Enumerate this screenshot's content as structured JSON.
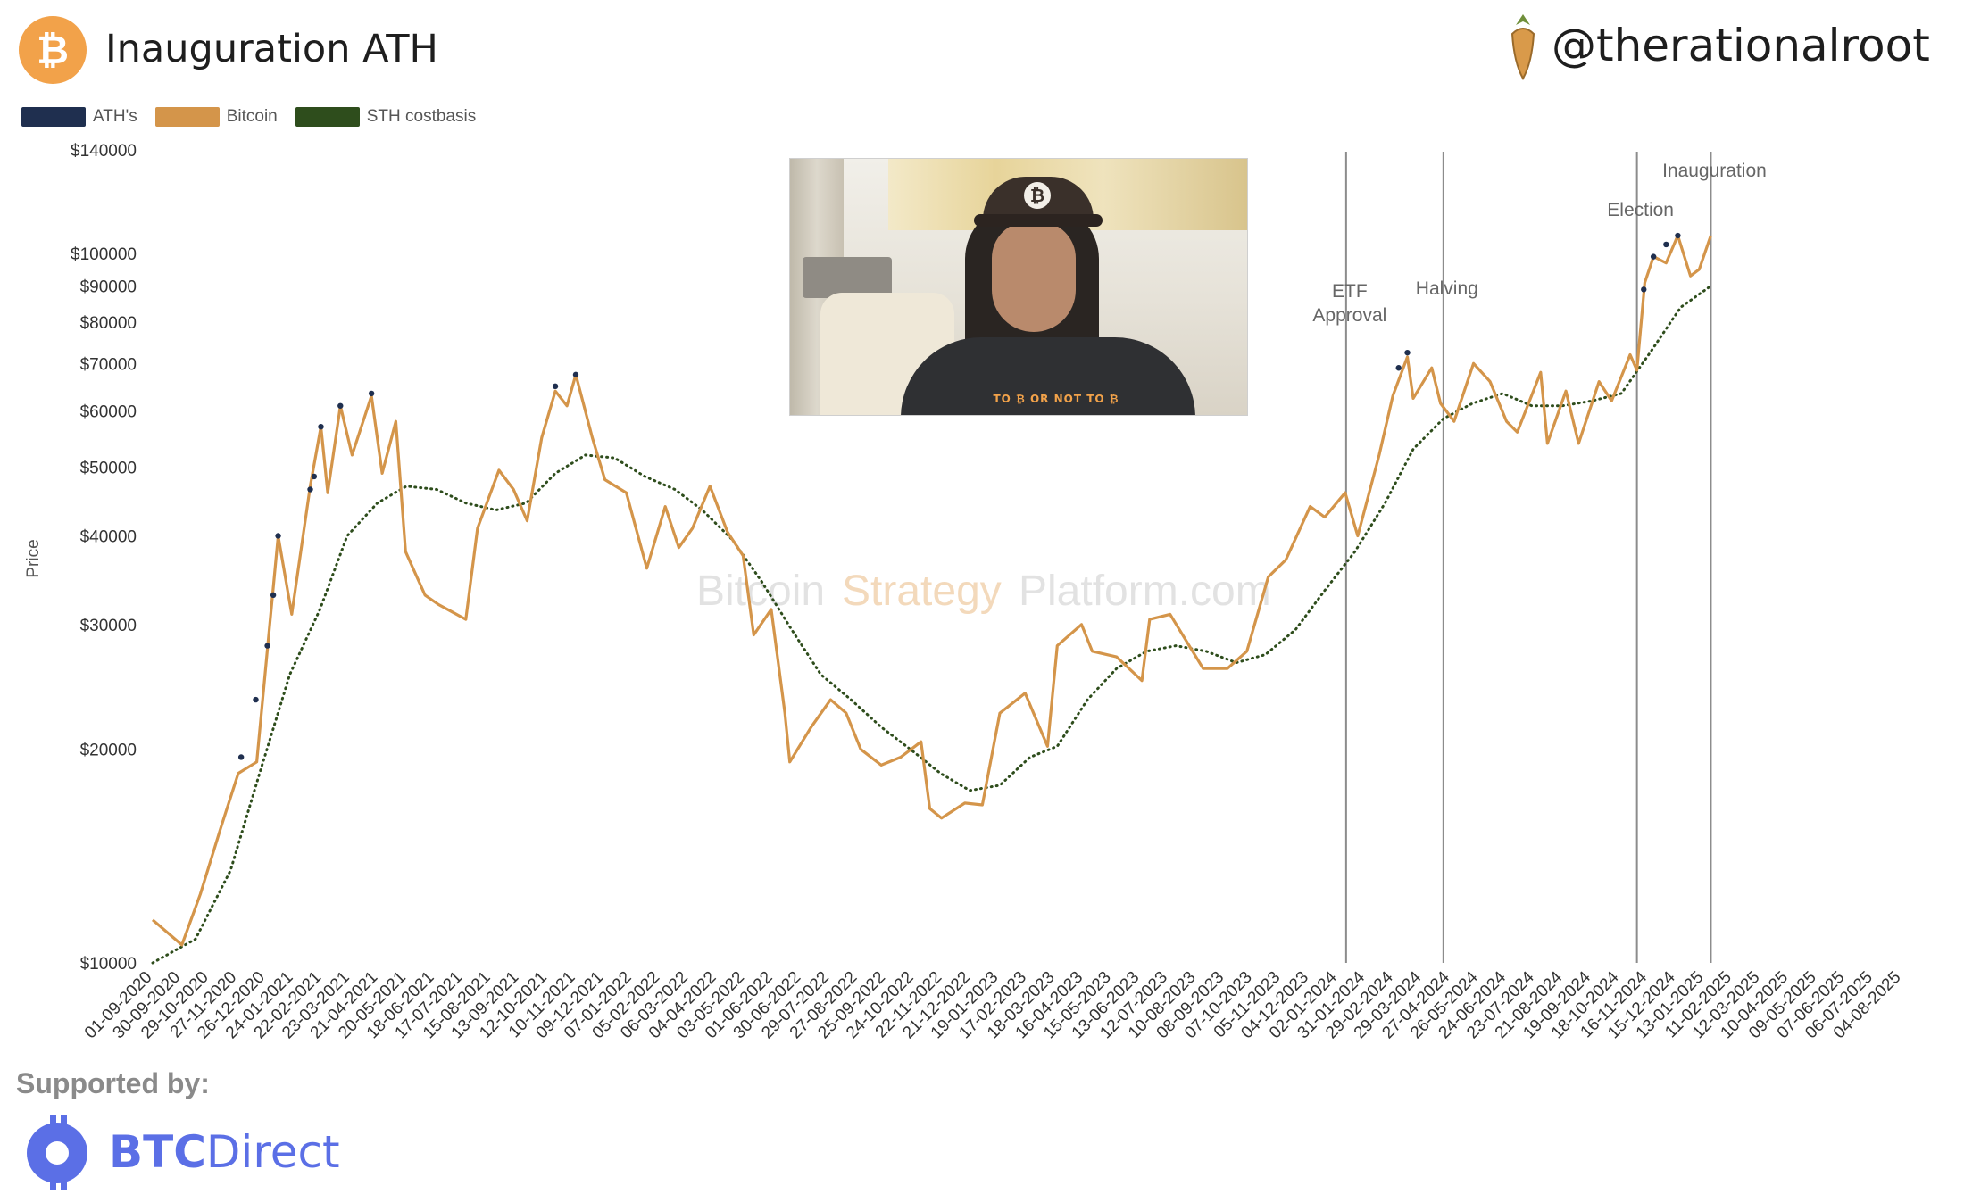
{
  "header": {
    "title": "Inauguration ATH",
    "handle": "@therationalroot"
  },
  "legend": {
    "items": [
      {
        "label": "ATH's",
        "color": "#1f2f4f"
      },
      {
        "label": "Bitcoin",
        "color": "#d4954a"
      },
      {
        "label": "STH costbasis",
        "color": "#2e4d1c"
      }
    ]
  },
  "watermark": {
    "part1": "Bitcoin",
    "part2": "Strategy",
    "part3": "Platform.com"
  },
  "footer": {
    "supported_label": "Supported by:",
    "brand_bold": "BTC",
    "brand_light": "Direct"
  },
  "colors": {
    "bitcoin": "#d4954a",
    "ath": "#1f2f4f",
    "sth": "#2e4d1c",
    "vline": "#8c8c8c",
    "btc_icon": "#f2a24a",
    "brand": "#5b6fe6"
  },
  "chart_data": {
    "type": "line",
    "title": "Inauguration ATH",
    "ylabel": "Price",
    "yscale": "log",
    "ylim": [
      10000,
      140000
    ],
    "yticks": [
      10000,
      20000,
      30000,
      40000,
      50000,
      60000,
      70000,
      80000,
      90000,
      100000,
      140000
    ],
    "ytick_labels": [
      "$10000",
      "$20000",
      "$30000",
      "$40000",
      "$50000",
      "$60000",
      "$70000",
      "$80000",
      "$90000",
      "$100000",
      "$140000"
    ],
    "xlim": [
      "2020-09-01",
      "2025-08-04"
    ],
    "xtick_labels": [
      "01-09-2020",
      "30-09-2020",
      "29-10-2020",
      "27-11-2020",
      "26-12-2020",
      "24-01-2021",
      "22-02-2021",
      "23-03-2021",
      "21-04-2021",
      "20-05-2021",
      "18-06-2021",
      "17-07-2021",
      "15-08-2021",
      "13-09-2021",
      "12-10-2021",
      "10-11-2021",
      "09-12-2021",
      "07-01-2022",
      "05-02-2022",
      "06-03-2022",
      "04-04-2022",
      "03-05-2022",
      "01-06-2022",
      "30-06-2022",
      "29-07-2022",
      "27-08-2022",
      "25-09-2022",
      "24-10-2022",
      "22-11-2022",
      "21-12-2022",
      "19-01-2023",
      "17-02-2023",
      "18-03-2023",
      "16-04-2023",
      "15-05-2023",
      "13-06-2023",
      "12-07-2023",
      "10-08-2023",
      "08-09-2023",
      "07-10-2023",
      "05-11-2023",
      "04-12-2023",
      "02-01-2024",
      "31-01-2024",
      "29-02-2024",
      "29-03-2024",
      "27-04-2024",
      "26-05-2024",
      "24-06-2024",
      "23-07-2024",
      "21-08-2024",
      "19-09-2024",
      "18-10-2024",
      "16-11-2024",
      "15-12-2024",
      "13-01-2025",
      "11-02-2025",
      "12-03-2025",
      "10-04-2025",
      "09-05-2025",
      "07-06-2025",
      "06-07-2025",
      "04-08-2025"
    ],
    "series": [
      {
        "name": "Bitcoin",
        "x": [
          "2020-09-01",
          "2020-10-01",
          "2020-10-20",
          "2020-11-10",
          "2020-11-28",
          "2020-12-17",
          "2021-01-08",
          "2021-01-22",
          "2021-02-10",
          "2021-02-21",
          "2021-02-28",
          "2021-03-13",
          "2021-03-25",
          "2021-04-14",
          "2021-04-25",
          "2021-05-09",
          "2021-05-19",
          "2021-06-08",
          "2021-06-22",
          "2021-07-20",
          "2021-08-01",
          "2021-08-23",
          "2021-09-07",
          "2021-09-21",
          "2021-10-06",
          "2021-10-20",
          "2021-11-01",
          "2021-11-10",
          "2021-11-27",
          "2021-12-10",
          "2022-01-01",
          "2022-01-22",
          "2022-02-10",
          "2022-02-24",
          "2022-03-10",
          "2022-03-28",
          "2022-04-15",
          "2022-05-01",
          "2022-05-12",
          "2022-05-30",
          "2022-06-13",
          "2022-06-18",
          "2022-07-10",
          "2022-07-30",
          "2022-08-15",
          "2022-08-30",
          "2022-09-20",
          "2022-10-10",
          "2022-10-31",
          "2022-11-09",
          "2022-11-21",
          "2022-12-15",
          "2023-01-02",
          "2023-01-20",
          "2023-02-15",
          "2023-03-10",
          "2023-03-20",
          "2023-04-14",
          "2023-04-25",
          "2023-05-20",
          "2023-06-15",
          "2023-06-23",
          "2023-07-14",
          "2023-08-17",
          "2023-09-11",
          "2023-10-01",
          "2023-10-23",
          "2023-11-10",
          "2023-12-05",
          "2023-12-20",
          "2024-01-10",
          "2024-01-23",
          "2024-02-14",
          "2024-02-28",
          "2024-03-14",
          "2024-03-20",
          "2024-04-08",
          "2024-04-17",
          "2024-05-01",
          "2024-05-21",
          "2024-06-07",
          "2024-06-24",
          "2024-07-05",
          "2024-07-29",
          "2024-08-05",
          "2024-08-24",
          "2024-09-06",
          "2024-09-27",
          "2024-10-10",
          "2024-10-29",
          "2024-11-05",
          "2024-11-13",
          "2024-11-22",
          "2024-12-05",
          "2024-12-17",
          "2024-12-30",
          "2025-01-08",
          "2025-01-20"
        ],
        "y": [
          11500,
          10600,
          12500,
          15500,
          18500,
          19200,
          40000,
          31000,
          47000,
          57000,
          46000,
          61000,
          52000,
          63000,
          49000,
          58000,
          38000,
          33000,
          32000,
          30500,
          41000,
          49500,
          46500,
          42000,
          55000,
          64000,
          61000,
          67500,
          55000,
          48000,
          46000,
          36000,
          44000,
          38500,
          41000,
          47000,
          40500,
          37500,
          29000,
          31500,
          22500,
          19200,
          21500,
          23500,
          22500,
          20000,
          19000,
          19500,
          20500,
          16500,
          16000,
          16800,
          16700,
          22500,
          24000,
          20200,
          28000,
          30000,
          27500,
          27000,
          25000,
          30500,
          31000,
          26000,
          26000,
          27500,
          35000,
          37000,
          44000,
          42500,
          46000,
          40000,
          52000,
          63000,
          71500,
          62500,
          69000,
          61500,
          58000,
          70000,
          66000,
          58000,
          56000,
          68000,
          54000,
          64000,
          54000,
          66000,
          62000,
          72000,
          68500,
          91000,
          99000,
          97000,
          106000,
          93000,
          95000,
          106000
        ]
      },
      {
        "name": "STH costbasis",
        "x": [
          "2020-09-01",
          "2020-10-15",
          "2020-11-20",
          "2020-12-20",
          "2021-01-20",
          "2021-02-20",
          "2021-03-20",
          "2021-04-20",
          "2021-05-20",
          "2021-06-20",
          "2021-07-20",
          "2021-08-20",
          "2021-09-20",
          "2021-10-20",
          "2021-11-20",
          "2021-12-20",
          "2022-01-20",
          "2022-02-20",
          "2022-03-20",
          "2022-04-20",
          "2022-05-20",
          "2022-06-20",
          "2022-07-20",
          "2022-08-20",
          "2022-09-20",
          "2022-10-20",
          "2022-11-20",
          "2022-12-20",
          "2023-01-20",
          "2023-02-20",
          "2023-03-20",
          "2023-04-20",
          "2023-05-20",
          "2023-06-20",
          "2023-07-20",
          "2023-08-20",
          "2023-09-20",
          "2023-10-20",
          "2023-11-20",
          "2023-12-20",
          "2024-01-20",
          "2024-02-20",
          "2024-03-20",
          "2024-04-20",
          "2024-05-20",
          "2024-06-20",
          "2024-07-20",
          "2024-08-20",
          "2024-09-20",
          "2024-10-20",
          "2024-11-20",
          "2024-12-20",
          "2025-01-20"
        ],
        "y": [
          10000,
          10800,
          13500,
          18500,
          25500,
          31500,
          40000,
          44500,
          47000,
          46500,
          44500,
          43500,
          44500,
          49000,
          52000,
          51500,
          48500,
          46500,
          43500,
          39500,
          34500,
          29500,
          25500,
          23500,
          21500,
          20000,
          18500,
          17500,
          17800,
          19500,
          20200,
          23500,
          26000,
          27500,
          28000,
          27500,
          26500,
          27200,
          29500,
          33500,
          38000,
          44500,
          53000,
          58500,
          61500,
          63500,
          61000,
          61000,
          62000,
          63500,
          73000,
          84000,
          90000
        ]
      },
      {
        "name": "ATH's",
        "x": [
          "2020-12-01",
          "2020-12-16",
          "2020-12-28",
          "2021-01-03",
          "2021-01-08",
          "2021-02-10",
          "2021-02-14",
          "2021-02-21",
          "2021-03-13",
          "2021-04-14",
          "2021-10-20",
          "2021-11-10",
          "2024-03-05",
          "2024-03-14",
          "2024-11-12",
          "2024-11-22",
          "2024-12-05",
          "2024-12-17"
        ],
        "y": [
          19500,
          23500,
          28000,
          33000,
          40000,
          46500,
          48500,
          57000,
          61000,
          63500,
          65000,
          67500,
          69000,
          72500,
          89000,
          99000,
          103000,
          106000
        ]
      }
    ],
    "annotations": [
      {
        "date": "2024-01-11",
        "label_lines": [
          "ETF",
          "Approval"
        ]
      },
      {
        "date": "2024-04-20",
        "label_lines": [
          "Halving"
        ]
      },
      {
        "date": "2024-11-05",
        "label_lines": [
          "Election"
        ]
      },
      {
        "date": "2025-01-20",
        "label_lines": [
          "Inauguration"
        ]
      }
    ]
  }
}
